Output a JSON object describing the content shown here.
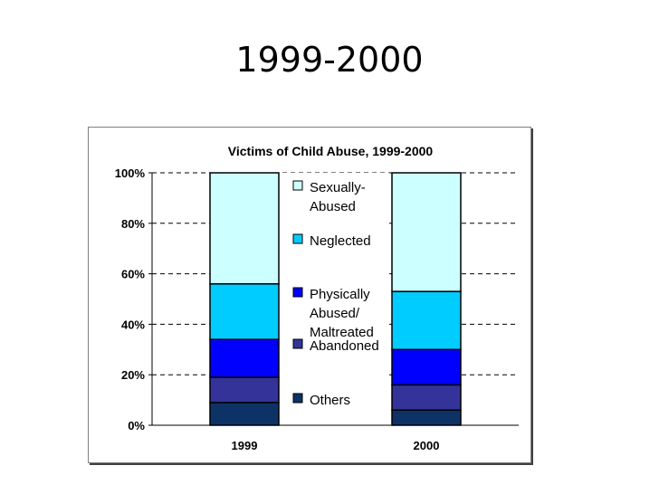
{
  "slide": {
    "title": "1999-2000"
  },
  "chart_data": {
    "type": "bar",
    "stacked": true,
    "percent": true,
    "title": "Victims of Child Abuse, 1999-2000",
    "categories": [
      "1999",
      "2000"
    ],
    "series": [
      {
        "name": "Others",
        "values": [
          9,
          6
        ],
        "color": "#0d3366"
      },
      {
        "name": "Abandoned",
        "values": [
          10,
          10
        ],
        "color": "#333399"
      },
      {
        "name": "Physically Abused/ Maltreated",
        "values": [
          15,
          14
        ],
        "color": "#0000ff"
      },
      {
        "name": "Neglected",
        "values": [
          22,
          23
        ],
        "color": "#00ccff"
      },
      {
        "name": "Sexually- Abused",
        "values": [
          44,
          47
        ],
        "color": "#ccffff"
      }
    ],
    "yticks": [
      "0%",
      "20%",
      "40%",
      "60%",
      "80%",
      "100%"
    ],
    "ylim": [
      0,
      100
    ],
    "grid": "dashed",
    "legend": "center",
    "legend_lines": [
      [
        "Sexually-",
        "Abused"
      ],
      [
        "Neglected"
      ],
      [
        "Physically",
        "Abused/",
        "Maltreated"
      ],
      [
        "Abandoned"
      ],
      [
        "Others"
      ]
    ]
  }
}
